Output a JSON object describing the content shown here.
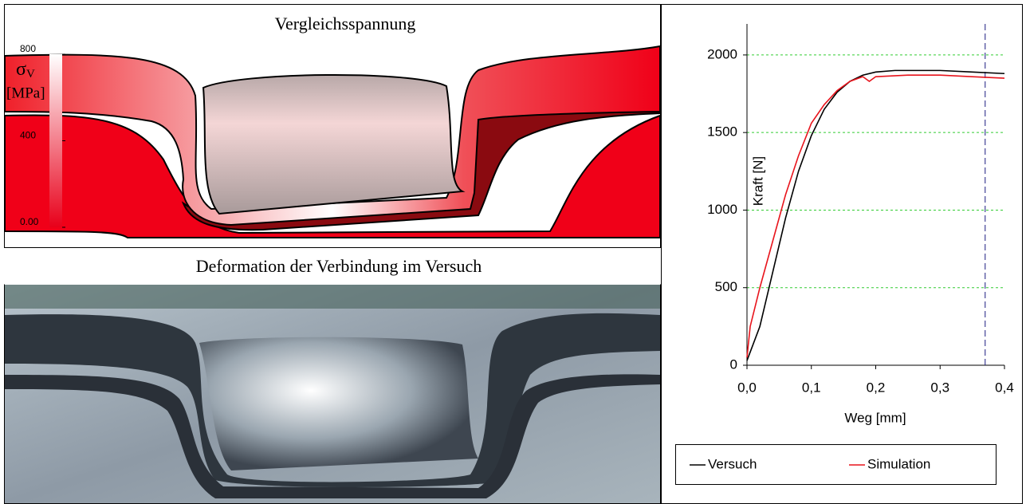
{
  "panels": [
    {
      "title": "Vergleichsspannung",
      "colorbar": {
        "symbol": "σ",
        "subscript": "V",
        "unit": "[MPa]",
        "ticks": [
          {
            "value": 0,
            "label": "0.00"
          },
          400,
          800
        ]
      }
    },
    {
      "title": "Deformation der Verbindung im Versuch"
    }
  ],
  "chart_data": {
    "type": "line",
    "x_label": "Weg [mm]",
    "y_label": "Kraft [N]",
    "xlim": [
      0,
      0.4
    ],
    "ylim": [
      0,
      2200
    ],
    "xticks": [
      {
        "value": 0,
        "label": "0,0"
      },
      {
        "value": 0.1,
        "label": "0,1"
      },
      {
        "value": 0.2,
        "label": "0,2"
      },
      {
        "value": 0.3,
        "label": "0,3"
      },
      {
        "value": 0.4,
        "label": "0,4"
      }
    ],
    "yticks": [
      0,
      500,
      1000,
      1500,
      2000
    ],
    "grid": true,
    "grid_color": "#33cc33",
    "vline": 0.37,
    "vline_color": "#1a1a80",
    "legend": "bottom",
    "series": [
      {
        "name": "Versuch",
        "color": "#000000",
        "x": [
          0,
          0.02,
          0.04,
          0.06,
          0.08,
          0.1,
          0.12,
          0.14,
          0.16,
          0.18,
          0.2,
          0.23,
          0.3,
          0.35,
          0.4
        ],
        "values": [
          30,
          250,
          600,
          950,
          1250,
          1480,
          1650,
          1760,
          1830,
          1870,
          1890,
          1900,
          1900,
          1890,
          1880
        ]
      },
      {
        "name": "Simulation",
        "color": "#e8141c",
        "x": [
          0,
          0.005,
          0.02,
          0.04,
          0.06,
          0.08,
          0.1,
          0.12,
          0.14,
          0.16,
          0.18,
          0.19,
          0.2,
          0.25,
          0.3,
          0.35,
          0.4
        ],
        "values": [
          50,
          250,
          500,
          800,
          1100,
          1350,
          1560,
          1680,
          1770,
          1830,
          1860,
          1830,
          1860,
          1870,
          1870,
          1860,
          1850
        ]
      }
    ]
  }
}
